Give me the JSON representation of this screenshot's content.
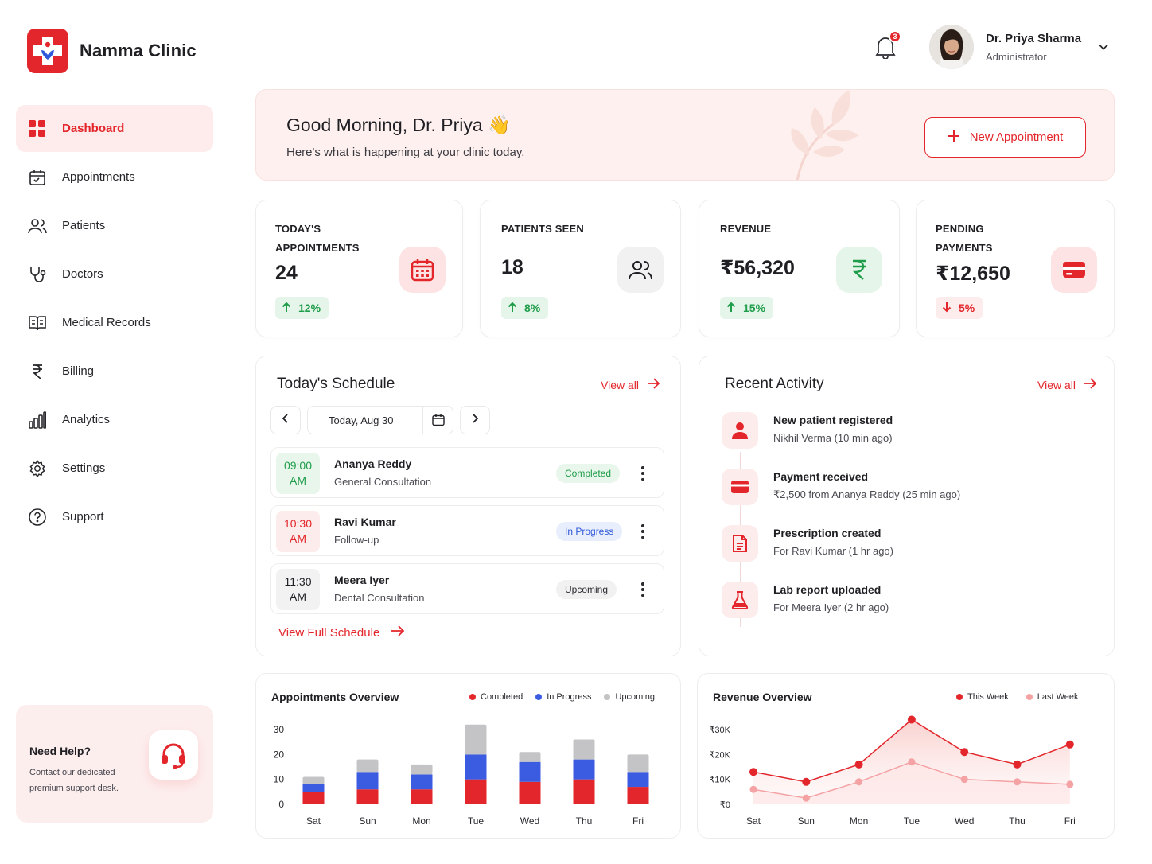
{
  "brand": {
    "name": "Namma Clinic"
  },
  "nav": [
    {
      "label": "Dashboard",
      "icon": "dashboard-grid-icon",
      "active": true
    },
    {
      "label": "Appointments",
      "icon": "calendar-icon"
    },
    {
      "label": "Patients",
      "icon": "users-icon"
    },
    {
      "label": "Doctors",
      "icon": "stethoscope-icon"
    },
    {
      "label": "Medical Records",
      "icon": "book-icon"
    },
    {
      "label": "Billing",
      "icon": "rupee-icon"
    },
    {
      "label": "Analytics",
      "icon": "bar-chart-icon"
    },
    {
      "label": "Settings",
      "icon": "gear-icon"
    },
    {
      "label": "Support",
      "icon": "help-circle-icon"
    }
  ],
  "help": {
    "title": "Need Help?",
    "text": "Contact our dedicated premium support desk."
  },
  "header": {
    "notifications": "3",
    "user_name": "Dr. Priya Sharma",
    "user_role": "Administrator"
  },
  "greeting": {
    "title": "Good Morning, Dr. Priya 👋",
    "subtitle": "Here's what is happening at your clinic today.",
    "button": "New Appointment"
  },
  "stats": [
    {
      "label_1": "TODAY'S",
      "label_2": "APPOINTMENTS",
      "value": "24",
      "change": "12%",
      "direction": "up"
    },
    {
      "label_1": "PATIENTS SEEN",
      "label_2": "",
      "value": "18",
      "change": "8%",
      "direction": "up"
    },
    {
      "label_1": "REVENUE",
      "label_2": "",
      "value": "₹56,320",
      "change": "15%",
      "direction": "up"
    },
    {
      "label_1": "PENDING",
      "label_2": "PAYMENTS",
      "value": "₹12,650",
      "change": "5%",
      "direction": "down"
    }
  ],
  "schedule": {
    "title": "Today's Schedule",
    "view_all": "View all",
    "date": "Today, Aug 30",
    "full_link": "View Full Schedule",
    "rows": [
      {
        "time": "09:00",
        "ampm": "AM",
        "name": "Ananya Reddy",
        "type": "General Consultation",
        "status": "Completed"
      },
      {
        "time": "10:30",
        "ampm": "AM",
        "name": "Ravi Kumar",
        "type": "Follow-up",
        "status": "In Progress"
      },
      {
        "time": "11:30",
        "ampm": "AM",
        "name": "Meera Iyer",
        "type": "Dental Consultation",
        "status": "Upcoming"
      }
    ]
  },
  "activity": {
    "title": "Recent Activity",
    "view_all": "View all",
    "items": [
      {
        "title": "New patient registered",
        "sub": "Nikhil Verma (10 min ago)",
        "icon": "user-icon"
      },
      {
        "title": "Payment received",
        "sub": "₹2,500 from Ananya Reddy (25 min ago)",
        "icon": "card-icon"
      },
      {
        "title": "Prescription created",
        "sub": "For Ravi Kumar (1 hr ago)",
        "icon": "document-icon"
      },
      {
        "title": "Lab report uploaded",
        "sub": "For Meera Iyer (2 hr ago)",
        "icon": "flask-icon"
      }
    ]
  },
  "colors": {
    "accent": "#e3262b",
    "green": "#1f9d4a",
    "blue": "#3b5be0",
    "gray": "#c4c4c6",
    "light_red": "#f4a2a4"
  },
  "chart_data": [
    {
      "type": "bar",
      "stacked": true,
      "title": "Appointments Overview",
      "categories": [
        "Sat",
        "Sun",
        "Mon",
        "Tue",
        "Wed",
        "Thu",
        "Fri"
      ],
      "series": [
        {
          "name": "Completed",
          "values": [
            5,
            6,
            6,
            10,
            9,
            10,
            7
          ]
        },
        {
          "name": "In Progress",
          "values": [
            3,
            7,
            6,
            10,
            8,
            8,
            6
          ]
        },
        {
          "name": "Upcoming",
          "values": [
            3,
            5,
            4,
            12,
            4,
            8,
            7
          ]
        }
      ],
      "yticks": [
        0,
        10,
        20,
        30
      ],
      "ylim": [
        0,
        30
      ],
      "legend": "top-right",
      "grid": false
    },
    {
      "type": "area",
      "title": "Revenue Overview",
      "categories": [
        "Sat",
        "Sun",
        "Mon",
        "Tue",
        "Wed",
        "Thu",
        "Fri"
      ],
      "series": [
        {
          "name": "This Week",
          "values": [
            13000,
            9000,
            16000,
            34000,
            21000,
            16000,
            24000
          ]
        },
        {
          "name": "Last Week",
          "values": [
            6000,
            2500,
            9000,
            17000,
            10000,
            9000,
            8000
          ]
        }
      ],
      "yticks": [
        "₹0",
        "₹10K",
        "₹20K",
        "₹30K"
      ],
      "ylim": [
        0,
        30000
      ],
      "legend": "top-right",
      "grid": false
    }
  ]
}
